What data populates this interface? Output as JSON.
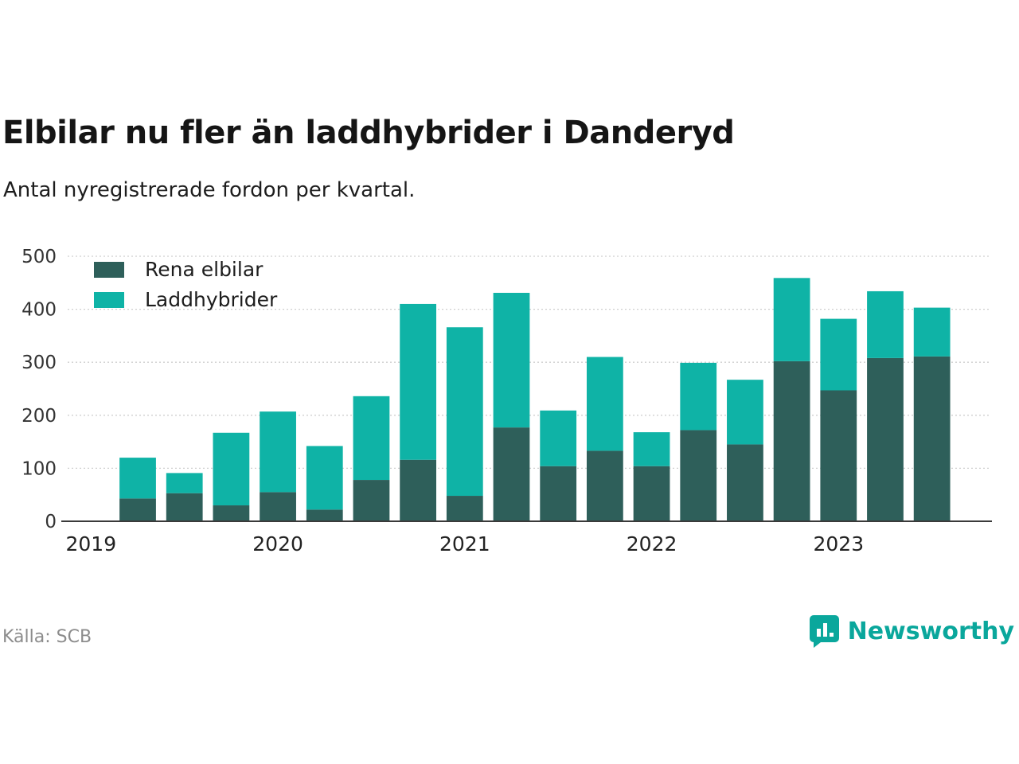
{
  "title": "Elbilar nu fler än laddhybrider i Danderyd",
  "subtitle": "Antal nyregistrerade fordon per kvartal.",
  "source": "Källa: SCB",
  "brand": {
    "name": "Newsworthy",
    "color": "#0aa79c"
  },
  "chart_data": {
    "type": "bar",
    "stacked": true,
    "title": "Elbilar nu fler än laddhybrider i Danderyd",
    "subtitle": "Antal nyregistrerade fordon per kvartal.",
    "x": [
      "2019 K2",
      "2019 K3",
      "2019 K4",
      "2020 K1",
      "2020 K2",
      "2020 K3",
      "2020 K4",
      "2021 K1",
      "2021 K2",
      "2021 K3",
      "2021 K4",
      "2022 K1",
      "2022 K2",
      "2022 K3",
      "2022 K4",
      "2023 K1",
      "2023 K2",
      "2023 K3"
    ],
    "series": [
      {
        "name": "Rena elbilar",
        "color": "#2e5f5a",
        "values": [
          43,
          53,
          30,
          55,
          22,
          78,
          116,
          48,
          177,
          104,
          133,
          104,
          172,
          145,
          302,
          247,
          308,
          311
        ]
      },
      {
        "name": "Laddhybrider",
        "color": "#0fb3a6",
        "values": [
          77,
          38,
          137,
          152,
          120,
          158,
          294,
          318,
          254,
          105,
          177,
          64,
          127,
          122,
          157,
          135,
          126,
          92
        ]
      }
    ],
    "ylim": [
      0,
      500
    ],
    "yticks": [
      0,
      100,
      200,
      300,
      400,
      500
    ],
    "xticks": [
      {
        "label": "2019",
        "slot": 0
      },
      {
        "label": "2020",
        "slot": 4
      },
      {
        "label": "2021",
        "slot": 8
      },
      {
        "label": "2022",
        "slot": 12
      },
      {
        "label": "2023",
        "slot": 16
      }
    ],
    "grid": true,
    "legend_position": "top-left"
  }
}
